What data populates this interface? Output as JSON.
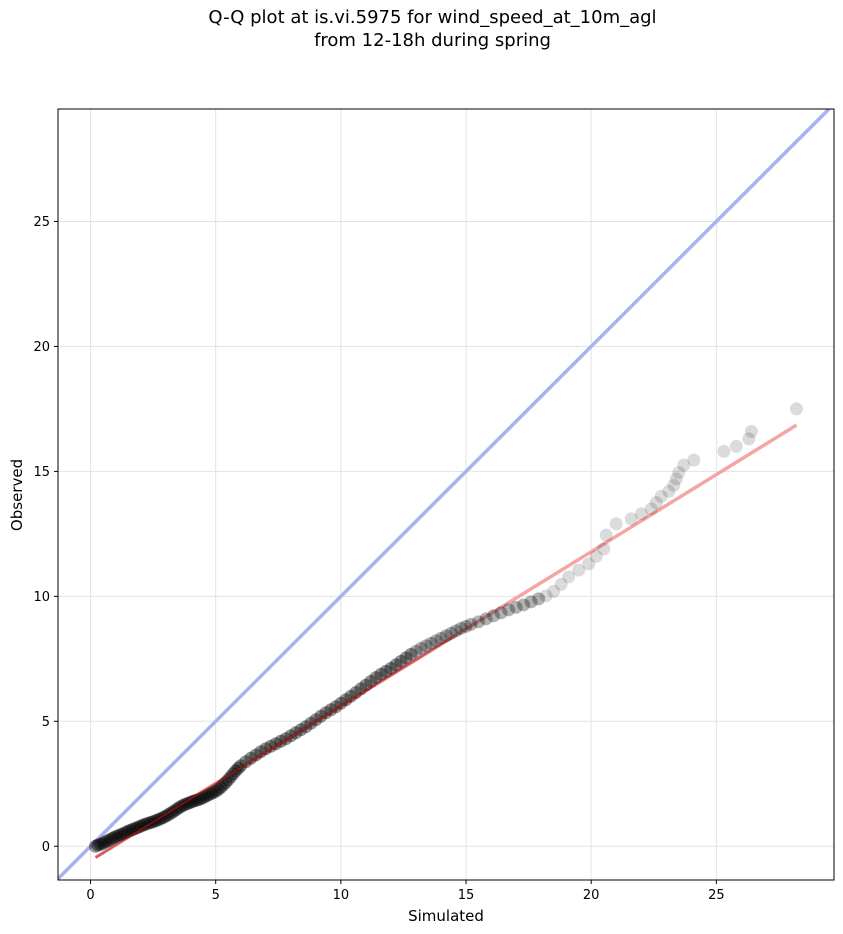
{
  "chart_data": {
    "type": "scatter",
    "title": "Q-Q plot at is.vi.5975 for wind_speed_at_10m_agl",
    "subtitle": "from 12-18h during spring",
    "xlabel": "Simulated",
    "ylabel": "Observed",
    "xlim": [
      -1.3,
      29.7
    ],
    "ylim": [
      -1.35,
      29.5
    ],
    "xticks": [
      0,
      5,
      10,
      15,
      20,
      25
    ],
    "yticks": [
      0,
      5,
      10,
      15,
      20,
      25
    ],
    "grid": true,
    "reference_line": {
      "name": "1:1",
      "color": "#aab0f2",
      "slope": 1,
      "intercept": 0
    },
    "fit_line": {
      "color": "#f4a5a5",
      "x": [
        0.2,
        28.2
      ],
      "y": [
        -0.45,
        16.85
      ]
    },
    "series": [
      {
        "marker_color": "#000000",
        "points": [
          [
            0.2,
            0.0
          ],
          [
            0.3,
            0.05
          ],
          [
            0.4,
            0.08
          ],
          [
            0.5,
            0.12
          ],
          [
            0.6,
            0.18
          ],
          [
            0.7,
            0.22
          ],
          [
            0.8,
            0.28
          ],
          [
            0.9,
            0.33
          ],
          [
            1.0,
            0.38
          ],
          [
            1.1,
            0.42
          ],
          [
            1.2,
            0.46
          ],
          [
            1.3,
            0.5
          ],
          [
            1.4,
            0.55
          ],
          [
            1.5,
            0.6
          ],
          [
            1.6,
            0.64
          ],
          [
            1.7,
            0.68
          ],
          [
            1.8,
            0.72
          ],
          [
            1.9,
            0.76
          ],
          [
            2.0,
            0.8
          ],
          [
            2.1,
            0.85
          ],
          [
            2.2,
            0.88
          ],
          [
            2.3,
            0.92
          ],
          [
            2.4,
            0.95
          ],
          [
            2.5,
            0.98
          ],
          [
            2.6,
            1.02
          ],
          [
            2.7,
            1.06
          ],
          [
            2.8,
            1.1
          ],
          [
            2.9,
            1.15
          ],
          [
            3.0,
            1.2
          ],
          [
            3.1,
            1.26
          ],
          [
            3.2,
            1.32
          ],
          [
            3.3,
            1.38
          ],
          [
            3.4,
            1.45
          ],
          [
            3.5,
            1.52
          ],
          [
            3.6,
            1.58
          ],
          [
            3.7,
            1.64
          ],
          [
            3.8,
            1.68
          ],
          [
            3.9,
            1.72
          ],
          [
            4.0,
            1.76
          ],
          [
            4.1,
            1.8
          ],
          [
            4.2,
            1.83
          ],
          [
            4.3,
            1.86
          ],
          [
            4.4,
            1.9
          ],
          [
            4.5,
            1.95
          ],
          [
            4.6,
            2.0
          ],
          [
            4.7,
            2.05
          ],
          [
            4.8,
            2.1
          ],
          [
            4.9,
            2.15
          ],
          [
            5.0,
            2.2
          ],
          [
            5.1,
            2.27
          ],
          [
            5.2,
            2.35
          ],
          [
            5.3,
            2.45
          ],
          [
            5.4,
            2.55
          ],
          [
            5.5,
            2.66
          ],
          [
            5.6,
            2.78
          ],
          [
            5.7,
            2.9
          ],
          [
            5.8,
            3.02
          ],
          [
            5.9,
            3.12
          ],
          [
            6.0,
            3.22
          ],
          [
            6.2,
            3.38
          ],
          [
            6.4,
            3.52
          ],
          [
            6.6,
            3.65
          ],
          [
            6.8,
            3.78
          ],
          [
            7.0,
            3.9
          ],
          [
            7.2,
            4.0
          ],
          [
            7.4,
            4.1
          ],
          [
            7.6,
            4.2
          ],
          [
            7.8,
            4.3
          ],
          [
            8.0,
            4.42
          ],
          [
            8.2,
            4.54
          ],
          [
            8.4,
            4.66
          ],
          [
            8.6,
            4.78
          ],
          [
            8.8,
            4.92
          ],
          [
            9.0,
            5.06
          ],
          [
            9.2,
            5.2
          ],
          [
            9.4,
            5.34
          ],
          [
            9.6,
            5.46
          ],
          [
            9.8,
            5.58
          ],
          [
            10.0,
            5.72
          ],
          [
            10.2,
            5.86
          ],
          [
            10.4,
            6.0
          ],
          [
            10.6,
            6.15
          ],
          [
            10.8,
            6.3
          ],
          [
            11.0,
            6.45
          ],
          [
            11.2,
            6.6
          ],
          [
            11.4,
            6.75
          ],
          [
            11.6,
            6.88
          ],
          [
            11.8,
            7.0
          ],
          [
            12.0,
            7.12
          ],
          [
            12.2,
            7.26
          ],
          [
            12.4,
            7.4
          ],
          [
            12.6,
            7.54
          ],
          [
            12.8,
            7.68
          ],
          [
            13.0,
            7.8
          ],
          [
            13.2,
            7.92
          ],
          [
            13.4,
            8.02
          ],
          [
            13.6,
            8.12
          ],
          [
            13.8,
            8.22
          ],
          [
            14.0,
            8.32
          ],
          [
            14.2,
            8.42
          ],
          [
            14.4,
            8.52
          ],
          [
            14.6,
            8.62
          ],
          [
            14.8,
            8.72
          ],
          [
            15.0,
            8.8
          ],
          [
            15.2,
            8.88
          ],
          [
            15.5,
            8.98
          ],
          [
            15.8,
            9.1
          ],
          [
            16.1,
            9.22
          ],
          [
            16.4,
            9.34
          ],
          [
            16.7,
            9.46
          ],
          [
            17.0,
            9.56
          ],
          [
            17.3,
            9.66
          ],
          [
            17.6,
            9.78
          ],
          [
            17.9,
            9.9
          ],
          [
            18.2,
            10.02
          ],
          [
            18.5,
            10.2
          ],
          [
            18.8,
            10.48
          ],
          [
            19.1,
            10.78
          ],
          [
            19.5,
            11.05
          ],
          [
            19.9,
            11.3
          ],
          [
            20.2,
            11.6
          ],
          [
            20.5,
            11.9
          ],
          [
            20.6,
            12.45
          ],
          [
            21.0,
            12.9
          ],
          [
            21.6,
            13.1
          ],
          [
            22.0,
            13.3
          ],
          [
            22.4,
            13.5
          ],
          [
            22.6,
            13.75
          ],
          [
            22.8,
            14.0
          ],
          [
            23.1,
            14.2
          ],
          [
            23.3,
            14.45
          ],
          [
            23.4,
            14.7
          ],
          [
            23.5,
            14.95
          ],
          [
            23.7,
            15.25
          ],
          [
            24.1,
            15.45
          ],
          [
            25.3,
            15.8
          ],
          [
            25.8,
            16.0
          ],
          [
            26.3,
            16.3
          ],
          [
            26.4,
            16.6
          ],
          [
            28.2,
            17.5
          ]
        ]
      }
    ]
  }
}
